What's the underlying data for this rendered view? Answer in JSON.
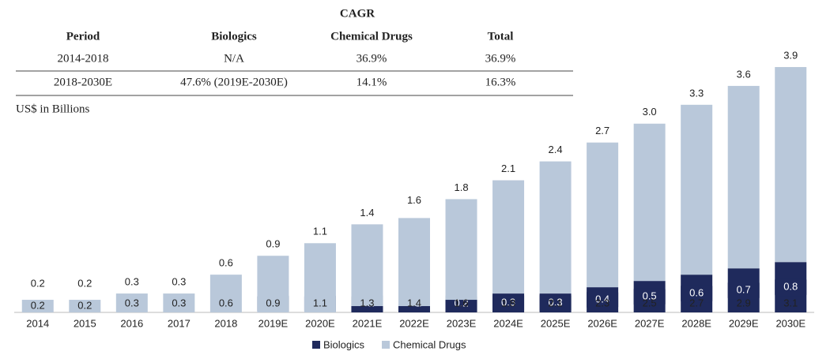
{
  "table": {
    "title": "CAGR",
    "columns": [
      "Period",
      "Biologics",
      "Chemical Drugs",
      "Total"
    ],
    "rows": [
      [
        "2014-2018",
        "N/A",
        "36.9%",
        "36.9%"
      ],
      [
        "2018-2030E",
        "47.6% (2019E-2030E)",
        "14.1%",
        "16.3%"
      ]
    ]
  },
  "chart_data": {
    "type": "stacked_bar",
    "unit_label": "US$ in Billions",
    "categories": [
      "2014",
      "2015",
      "2016",
      "2017",
      "2018",
      "2019E",
      "2020E",
      "2021E",
      "2022E",
      "2023E",
      "2024E",
      "2025E",
      "2026E",
      "2027E",
      "2028E",
      "2029E",
      "2030E"
    ],
    "series": [
      {
        "name": "Biologics",
        "color": "#1f2a5c",
        "values": [
          null,
          null,
          null,
          null,
          null,
          0.0,
          0.0,
          0.1,
          0.1,
          0.2,
          0.3,
          0.3,
          0.4,
          0.5,
          0.6,
          0.7,
          0.8
        ],
        "value_labels": [
          null,
          null,
          null,
          null,
          null,
          "0.0",
          "0.0",
          "0.1",
          "0.1",
          "0.2",
          "0.3",
          "0.3",
          "0.4",
          "0.5",
          "0.6",
          "0.7",
          "0.8"
        ]
      },
      {
        "name": "Chemical Drugs",
        "color": "#b9c8da",
        "values": [
          0.2,
          0.2,
          0.3,
          0.3,
          0.6,
          0.9,
          1.1,
          1.3,
          1.4,
          1.6,
          1.8,
          2.1,
          2.3,
          2.5,
          2.7,
          2.9,
          3.1
        ],
        "value_labels": [
          "0.2",
          "0.2",
          "0.3",
          "0.3",
          "0.6",
          "0.9",
          "1.1",
          "1.3",
          "1.4",
          "1.6",
          "1.8",
          "2.1",
          "2.3",
          "2.5",
          "2.7",
          "2.9",
          "3.1"
        ]
      }
    ],
    "totals": [
      0.2,
      0.2,
      0.3,
      0.3,
      0.6,
      0.9,
      1.1,
      1.4,
      1.6,
      1.8,
      2.1,
      2.4,
      2.7,
      3.0,
      3.3,
      3.6,
      3.9
    ],
    "total_labels": [
      "0.2",
      "0.2",
      "0.3",
      "0.3",
      "0.6",
      "0.9",
      "1.1",
      "1.4",
      "1.6",
      "1.8",
      "2.1",
      "2.4",
      "2.7",
      "3.0",
      "3.3",
      "3.6",
      "3.9"
    ],
    "ylim": [
      0,
      4
    ],
    "legend": "bottom"
  }
}
